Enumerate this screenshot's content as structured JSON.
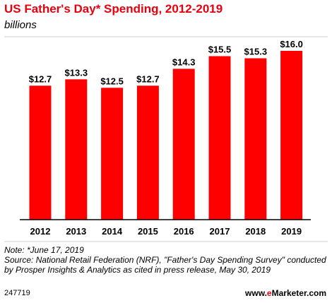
{
  "header": {
    "title": "US Father's Day* Spending, 2012-2019",
    "subtitle": "billions"
  },
  "colors": {
    "bar": "#ff0000",
    "title": "#e8000f",
    "axis": "#000000"
  },
  "chart_data": {
    "type": "bar",
    "title": "US Father's Day* Spending, 2012-2019",
    "ylabel": "billions",
    "categories": [
      "2012",
      "2013",
      "2014",
      "2015",
      "2016",
      "2017",
      "2018",
      "2019"
    ],
    "values": [
      12.7,
      13.3,
      12.5,
      12.7,
      14.3,
      15.5,
      15.3,
      16.0
    ],
    "labels": [
      "$12.7",
      "$13.3",
      "$12.5",
      "$12.7",
      "$14.3",
      "$15.5",
      "$15.3",
      "$16.0"
    ],
    "ylim": [
      0,
      16.0
    ],
    "grid": false,
    "legend": "none"
  },
  "footer": {
    "note": "Note: *June 17, 2019",
    "source": "Source: National Retail Federation (NRF), \"Father's Day Spending Survey\" conducted by Prosper Insights & Analytics as cited in press release, May 30, 2019",
    "chart_id": "247719",
    "brand_prefix": "www.",
    "brand_e": "e",
    "brand_name": "Marketer",
    "brand_suffix": ".com"
  }
}
